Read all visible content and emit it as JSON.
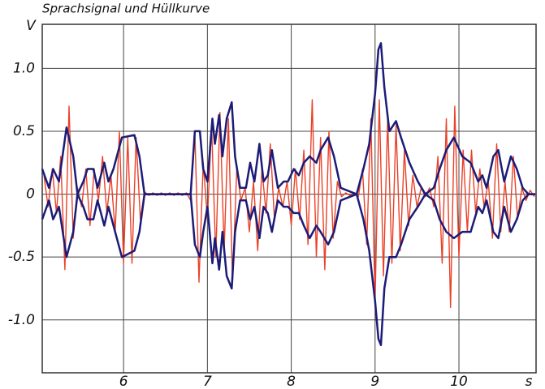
{
  "chart_data": {
    "type": "line",
    "title": "Sprachsignal und Hüllkurve",
    "y_label": "V",
    "x_label": "s",
    "xlim": [
      5.03,
      10.92
    ],
    "ylim": [
      -1.42,
      1.35
    ],
    "xticks": [
      6,
      7,
      8,
      9,
      10
    ],
    "yticks": [
      {
        "value": 1,
        "label": "1.0"
      },
      0.5,
      0,
      -0.5,
      {
        "value": -1,
        "label": "-1.0"
      }
    ],
    "grid": true,
    "series": [
      {
        "color": "#ea4127",
        "x": [
          5.05,
          5.1,
          5.15,
          5.2,
          5.25,
          5.3,
          5.35,
          5.4,
          5.45,
          5.5,
          5.55,
          5.6,
          5.65,
          5.7,
          5.75,
          5.8,
          5.85,
          5.9,
          5.95,
          6.0,
          6.05,
          6.1,
          6.15,
          6.2,
          6.25,
          6.3,
          6.35,
          6.4,
          6.45,
          6.5,
          6.55,
          6.6,
          6.65,
          6.7,
          6.75,
          6.8,
          6.85,
          6.9,
          6.95,
          7.0,
          7.05,
          7.1,
          7.15,
          7.2,
          7.25,
          7.3,
          7.35,
          7.4,
          7.45,
          7.5,
          7.55,
          7.6,
          7.65,
          7.7,
          7.75,
          7.8,
          7.85,
          7.9,
          7.95,
          8.0,
          8.05,
          8.1,
          8.15,
          8.2,
          8.25,
          8.3,
          8.35,
          8.4,
          8.45,
          8.5,
          8.55,
          8.6,
          8.65,
          8.7,
          8.75,
          8.8,
          8.85,
          8.9,
          8.95,
          9.0,
          9.05,
          9.1,
          9.15,
          9.2,
          9.25,
          9.3,
          9.35,
          9.4,
          9.45,
          9.5,
          9.55,
          9.6,
          9.65,
          9.7,
          9.75,
          9.8,
          9.85,
          9.9,
          9.95,
          10.0,
          10.05,
          10.1,
          10.15,
          10.2,
          10.25,
          10.3,
          10.35,
          10.4,
          10.45,
          10.5,
          10.55,
          10.6,
          10.65,
          10.7,
          10.75,
          10.8,
          10.85,
          10.9
        ],
        "values": [
          0.15,
          -0.1,
          0.2,
          -0.15,
          0.3,
          -0.6,
          0.7,
          -0.35,
          0.05,
          -0.1,
          0.2,
          -0.25,
          0.2,
          -0.05,
          0.3,
          -0.15,
          0.15,
          -0.3,
          0.5,
          -0.55,
          0.45,
          -0.55,
          0.45,
          -0.2,
          0.02,
          -0.01,
          0.01,
          -0.01,
          0.01,
          -0.01,
          0.01,
          -0.01,
          0.01,
          -0.01,
          0.01,
          -0.05,
          0.5,
          -0.7,
          0.25,
          -0.2,
          0.55,
          -0.5,
          0.65,
          -0.45,
          0.6,
          -0.7,
          0.2,
          -0.05,
          0.05,
          -0.3,
          0.1,
          -0.45,
          0.2,
          -0.15,
          0.4,
          -0.2,
          0.05,
          -0.1,
          0.1,
          -0.25,
          0.2,
          -0.2,
          0.35,
          -0.4,
          0.75,
          -0.5,
          0.45,
          -0.6,
          0.5,
          -0.35,
          0.1,
          -0.02,
          0.01,
          -0.01,
          0.01,
          -0.02,
          0.2,
          -0.4,
          0.6,
          -0.85,
          0.75,
          -0.65,
          0.6,
          -0.55,
          0.55,
          -0.45,
          0.35,
          -0.25,
          0.15,
          -0.1,
          0.05,
          -0.02,
          0.05,
          -0.1,
          0.3,
          -0.55,
          0.6,
          -0.9,
          0.7,
          -0.5,
          0.35,
          -0.3,
          0.35,
          -0.15,
          0.2,
          -0.1,
          0.1,
          -0.35,
          0.4,
          -0.3,
          0.1,
          -0.3,
          0.3,
          -0.2,
          0.05,
          -0.05,
          0.03,
          -0.02
        ]
      },
      {
        "color": "#1c1c78",
        "x": [
          5.03,
          5.11,
          5.16,
          5.23,
          5.32,
          5.4,
          5.45,
          5.52,
          5.57,
          5.64,
          5.69,
          5.77,
          5.82,
          5.88,
          5.98,
          6.13,
          6.19,
          6.25,
          6.46,
          6.8,
          6.85,
          6.91,
          6.95,
          7.0,
          7.06,
          7.09,
          7.14,
          7.18,
          7.23,
          7.29,
          7.33,
          7.39,
          7.46,
          7.51,
          7.56,
          7.62,
          7.67,
          7.72,
          7.77,
          7.84,
          7.91,
          7.96,
          8.03,
          8.09,
          8.15,
          8.22,
          8.3,
          8.35,
          8.44,
          8.51,
          8.59,
          8.78,
          8.86,
          8.93,
          9.0,
          9.04,
          9.07,
          9.11,
          9.17,
          9.25,
          9.31,
          9.41,
          9.51,
          9.6,
          9.7,
          9.77,
          9.85,
          9.94,
          10.04,
          10.14,
          10.23,
          10.28,
          10.33,
          10.41,
          10.47,
          10.54,
          10.62,
          10.69,
          10.76,
          10.83,
          10.91
        ],
        "values": [
          0.2,
          0.05,
          0.2,
          0.1,
          0.53,
          0.3,
          0,
          0.1,
          0.2,
          0.2,
          0.05,
          0.25,
          0.1,
          0.2,
          0.45,
          0.47,
          0.3,
          0,
          0,
          0,
          0.5,
          0.5,
          0.2,
          0.1,
          0.6,
          0.4,
          0.63,
          0.3,
          0.6,
          0.73,
          0.3,
          0.05,
          0.05,
          0.25,
          0.1,
          0.4,
          0.1,
          0.15,
          0.35,
          0.05,
          0.1,
          0.1,
          0.2,
          0.15,
          0.25,
          0.3,
          0.25,
          0.35,
          0.45,
          0.3,
          0.05,
          0,
          0.2,
          0.4,
          0.8,
          1.15,
          1.2,
          0.85,
          0.5,
          0.58,
          0.45,
          0.25,
          0.1,
          0,
          0.05,
          0.2,
          0.35,
          0.45,
          0.3,
          0.25,
          0.1,
          0.15,
          0.05,
          0.3,
          0.35,
          0.1,
          0.3,
          0.2,
          0.05,
          0,
          0
        ]
      },
      {
        "color": "#1c1c78",
        "x": [
          5.03,
          5.11,
          5.16,
          5.23,
          5.32,
          5.4,
          5.45,
          5.52,
          5.57,
          5.64,
          5.69,
          5.77,
          5.82,
          5.88,
          5.98,
          6.13,
          6.19,
          6.25,
          6.46,
          6.8,
          6.85,
          6.91,
          6.95,
          7.0,
          7.06,
          7.09,
          7.14,
          7.18,
          7.23,
          7.29,
          7.33,
          7.39,
          7.46,
          7.51,
          7.56,
          7.62,
          7.67,
          7.72,
          7.77,
          7.84,
          7.91,
          7.96,
          8.03,
          8.09,
          8.15,
          8.22,
          8.3,
          8.35,
          8.44,
          8.51,
          8.59,
          8.78,
          8.86,
          8.93,
          9.0,
          9.04,
          9.07,
          9.11,
          9.17,
          9.25,
          9.31,
          9.41,
          9.51,
          9.6,
          9.7,
          9.77,
          9.85,
          9.94,
          10.04,
          10.14,
          10.23,
          10.28,
          10.33,
          10.41,
          10.47,
          10.54,
          10.62,
          10.69,
          10.76,
          10.83,
          10.91
        ],
        "values": [
          -0.2,
          -0.05,
          -0.2,
          -0.1,
          -0.5,
          -0.3,
          0,
          -0.1,
          -0.2,
          -0.2,
          -0.05,
          -0.25,
          -0.1,
          -0.25,
          -0.5,
          -0.45,
          -0.3,
          0,
          0,
          0,
          -0.4,
          -0.5,
          -0.3,
          -0.1,
          -0.55,
          -0.35,
          -0.6,
          -0.3,
          -0.65,
          -0.75,
          -0.3,
          -0.05,
          -0.05,
          -0.2,
          -0.1,
          -0.35,
          -0.1,
          -0.15,
          -0.3,
          -0.05,
          -0.1,
          -0.1,
          -0.15,
          -0.15,
          -0.25,
          -0.35,
          -0.25,
          -0.3,
          -0.4,
          -0.3,
          -0.05,
          0,
          -0.2,
          -0.45,
          -0.85,
          -1.15,
          -1.2,
          -0.75,
          -0.5,
          -0.5,
          -0.4,
          -0.2,
          -0.1,
          0,
          -0.05,
          -0.2,
          -0.3,
          -0.35,
          -0.3,
          -0.3,
          -0.1,
          -0.15,
          -0.05,
          -0.3,
          -0.35,
          -0.1,
          -0.3,
          -0.2,
          -0.05,
          0,
          0
        ]
      }
    ]
  }
}
